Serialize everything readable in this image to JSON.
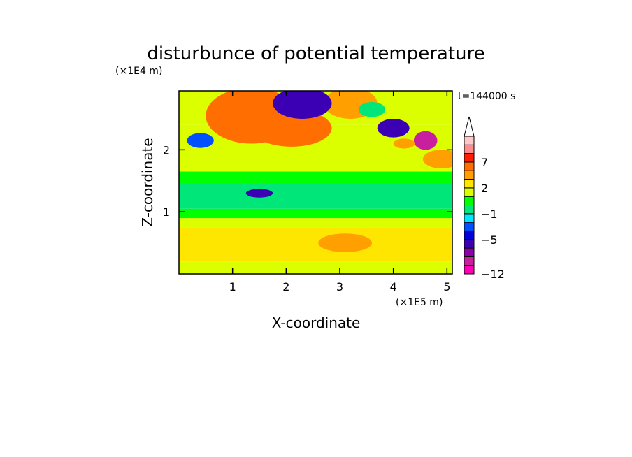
{
  "chart_data": {
    "type": "heatmap",
    "title": "disturbunce of potential temperature",
    "xlabel": "X-coordinate",
    "ylabel": "Z-coordinate",
    "x_unit": "(×1E5 m)",
    "y_unit": "(×1E4 m)",
    "time_label": "t=144000 s",
    "x_ticks": [
      1,
      2,
      3,
      4,
      5
    ],
    "y_ticks": [
      1,
      2
    ],
    "xlim": [
      0,
      5.1
    ],
    "ylim": [
      0,
      2.95
    ],
    "colorbar": {
      "levels": [
        -12,
        -11,
        -9,
        -7,
        -5,
        -4,
        -3,
        -1,
        0,
        1,
        2,
        3,
        5,
        7,
        8,
        9,
        11
      ],
      "colors": [
        "#ff00b4",
        "#c81ea0",
        "#8c00aa",
        "#3c00b4",
        "#0000dc",
        "#0050ff",
        "#00e6ff",
        "#00e678",
        "#00ff00",
        "#dcff00",
        "#ffe600",
        "#ffa000",
        "#ff6e00",
        "#ff1e00",
        "#ff8c8c",
        "#ffc8c8",
        "#ffffff"
      ],
      "tick_values": [
        -12,
        -5,
        -1,
        2,
        7
      ],
      "tick_labels": [
        "−12",
        "−5",
        "−1",
        "2",
        "7"
      ],
      "extend": "max"
    },
    "bands": [
      {
        "z": [
          0.0,
          0.2
        ],
        "value": 1.5
      },
      {
        "z": [
          0.2,
          0.75
        ],
        "value": 2.5
      },
      {
        "z": [
          0.75,
          0.9
        ],
        "value": 1.5
      },
      {
        "z": [
          0.9,
          1.05
        ],
        "value": 0.5
      },
      {
        "z": [
          1.05,
          1.45
        ],
        "value": -0.5
      },
      {
        "z": [
          1.45,
          1.65
        ],
        "value": 0.5
      },
      {
        "z": [
          1.65,
          2.4
        ],
        "value": 1.5
      },
      {
        "z": [
          2.4,
          2.95
        ],
        "value": 1.5
      }
    ],
    "features": [
      {
        "x": 1.35,
        "z": 2.55,
        "rx": 0.85,
        "rz": 0.45,
        "value": 5.5
      },
      {
        "x": 2.1,
        "z": 2.35,
        "rx": 0.75,
        "rz": 0.3,
        "value": 6.5
      },
      {
        "x": 3.2,
        "z": 2.75,
        "rx": 0.5,
        "rz": 0.25,
        "value": 4.5
      },
      {
        "x": 4.9,
        "z": 1.85,
        "rx": 0.35,
        "rz": 0.15,
        "value": 4.5
      },
      {
        "x": 2.3,
        "z": 2.75,
        "rx": 0.55,
        "rz": 0.25,
        "value": -6
      },
      {
        "x": 4.0,
        "z": 2.35,
        "rx": 0.3,
        "rz": 0.15,
        "value": -5.5
      },
      {
        "x": 4.6,
        "z": 2.15,
        "rx": 0.22,
        "rz": 0.15,
        "value": -10
      },
      {
        "x": 1.5,
        "z": 1.3,
        "rx": 0.25,
        "rz": 0.07,
        "value": -5.5
      },
      {
        "x": 0.4,
        "z": 2.15,
        "rx": 0.25,
        "rz": 0.12,
        "value": -3.5
      },
      {
        "x": 3.6,
        "z": 2.65,
        "rx": 0.25,
        "rz": 0.12,
        "value": -0.5
      },
      {
        "x": 4.2,
        "z": 2.1,
        "rx": 0.2,
        "rz": 0.08,
        "value": 3.5
      },
      {
        "x": 3.1,
        "z": 0.5,
        "rx": 0.5,
        "rz": 0.15,
        "value": 3.5
      }
    ]
  }
}
